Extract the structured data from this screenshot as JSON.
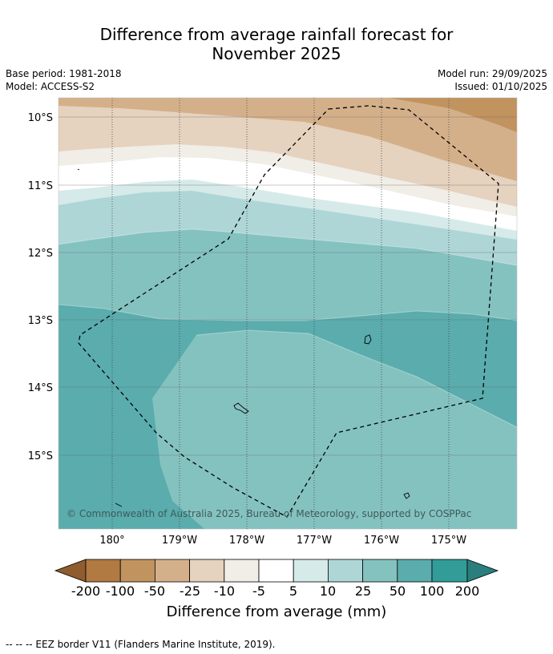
{
  "title": {
    "line1": "Difference from average rainfall forecast for",
    "line2": "November 2025"
  },
  "meta": {
    "base_period": "Base period: 1981-2018",
    "model": "Model: ACCESS-S2",
    "model_run": "Model run: 29/09/2025",
    "issued": "Issued: 01/10/2025"
  },
  "map": {
    "lat_labels": [
      "10°S",
      "11°S",
      "12°S",
      "13°S",
      "14°S",
      "15°S"
    ],
    "lon_labels": [
      "180°",
      "179°W",
      "178°W",
      "177°W",
      "176°W",
      "175°W"
    ],
    "copyright": "© Commonwealth of Australia 2025, Bureau of Meteorology, supported by COSPPac",
    "colors": {
      "minus200_minus100": "#b07a42",
      "minus100_minus50": "#c1935f",
      "minus50_minus25": "#d4b08a",
      "minus25_minus10": "#e5d2bf",
      "minus10_minus5": "#f1ede7",
      "minus5_5": "#ffffff",
      "5_10": "#d6eaea",
      "10_25": "#aed6d6",
      "25_50": "#84c2c0",
      "50_100": "#5aacad",
      "100_200": "#329c99",
      "over_200": "#2a7e7e",
      "under_minus200": "#8e5c2e"
    }
  },
  "colorbar": {
    "labels": [
      "-200",
      "-100",
      "-50",
      "-25",
      "-10",
      "-5",
      "5",
      "10",
      "25",
      "50",
      "100",
      "200"
    ],
    "title": "Difference from average (mm)"
  },
  "footer": "--  --  -- EEZ border V11 (Flanders Marine Institute, 2019)."
}
